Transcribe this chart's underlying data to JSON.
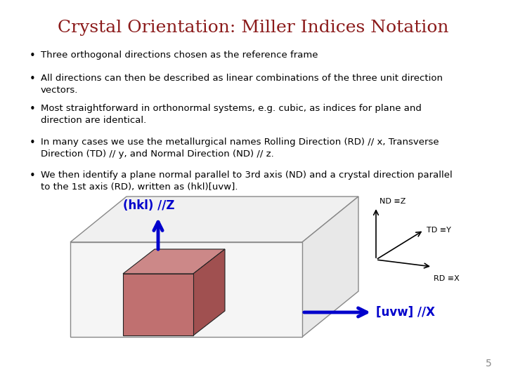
{
  "title": "Crystal Orientation: Miller Indices Notation",
  "title_color": "#8B1A1A",
  "title_fontsize": 18,
  "bg_color": "#FFFFFF",
  "bullet_points": [
    "Three orthogonal directions chosen as the reference frame",
    "All directions can then be described as linear combinations of the three unit direction\nvectors.",
    "Most straightforward in orthonormal systems, e.g. cubic, as indices for plane and\ndirection are identical.",
    "In many cases we use the metallurgical names Rolling Direction (RD) // x, Transverse\nDirection (TD) // y, and Normal Direction (ND) // z.",
    "We then identify a plane normal parallel to 3rd axis (ND) and a crystal direction parallel\nto the 1st axis (RD), written as (hkl)[uvw]."
  ],
  "bullet_fontsize": 9.5,
  "page_number": "5",
  "hkl_label": "(hkl) //Z",
  "uvw_label": "[uvw] //X",
  "nd_label": "ND ≡Z",
  "td_label": "TD ≡Y",
  "rd_label": "RD ≡X",
  "arrow_color_blue": "#0000CC",
  "crystal_color_front": "#C07070",
  "crystal_color_side": "#A05050",
  "crystal_color_top": "#CC8888",
  "box_edge_color": "#888888",
  "box_face_top": "#F0F0F0",
  "box_face_right": "#E8E8E8",
  "box_face_front": "#F5F5F5"
}
